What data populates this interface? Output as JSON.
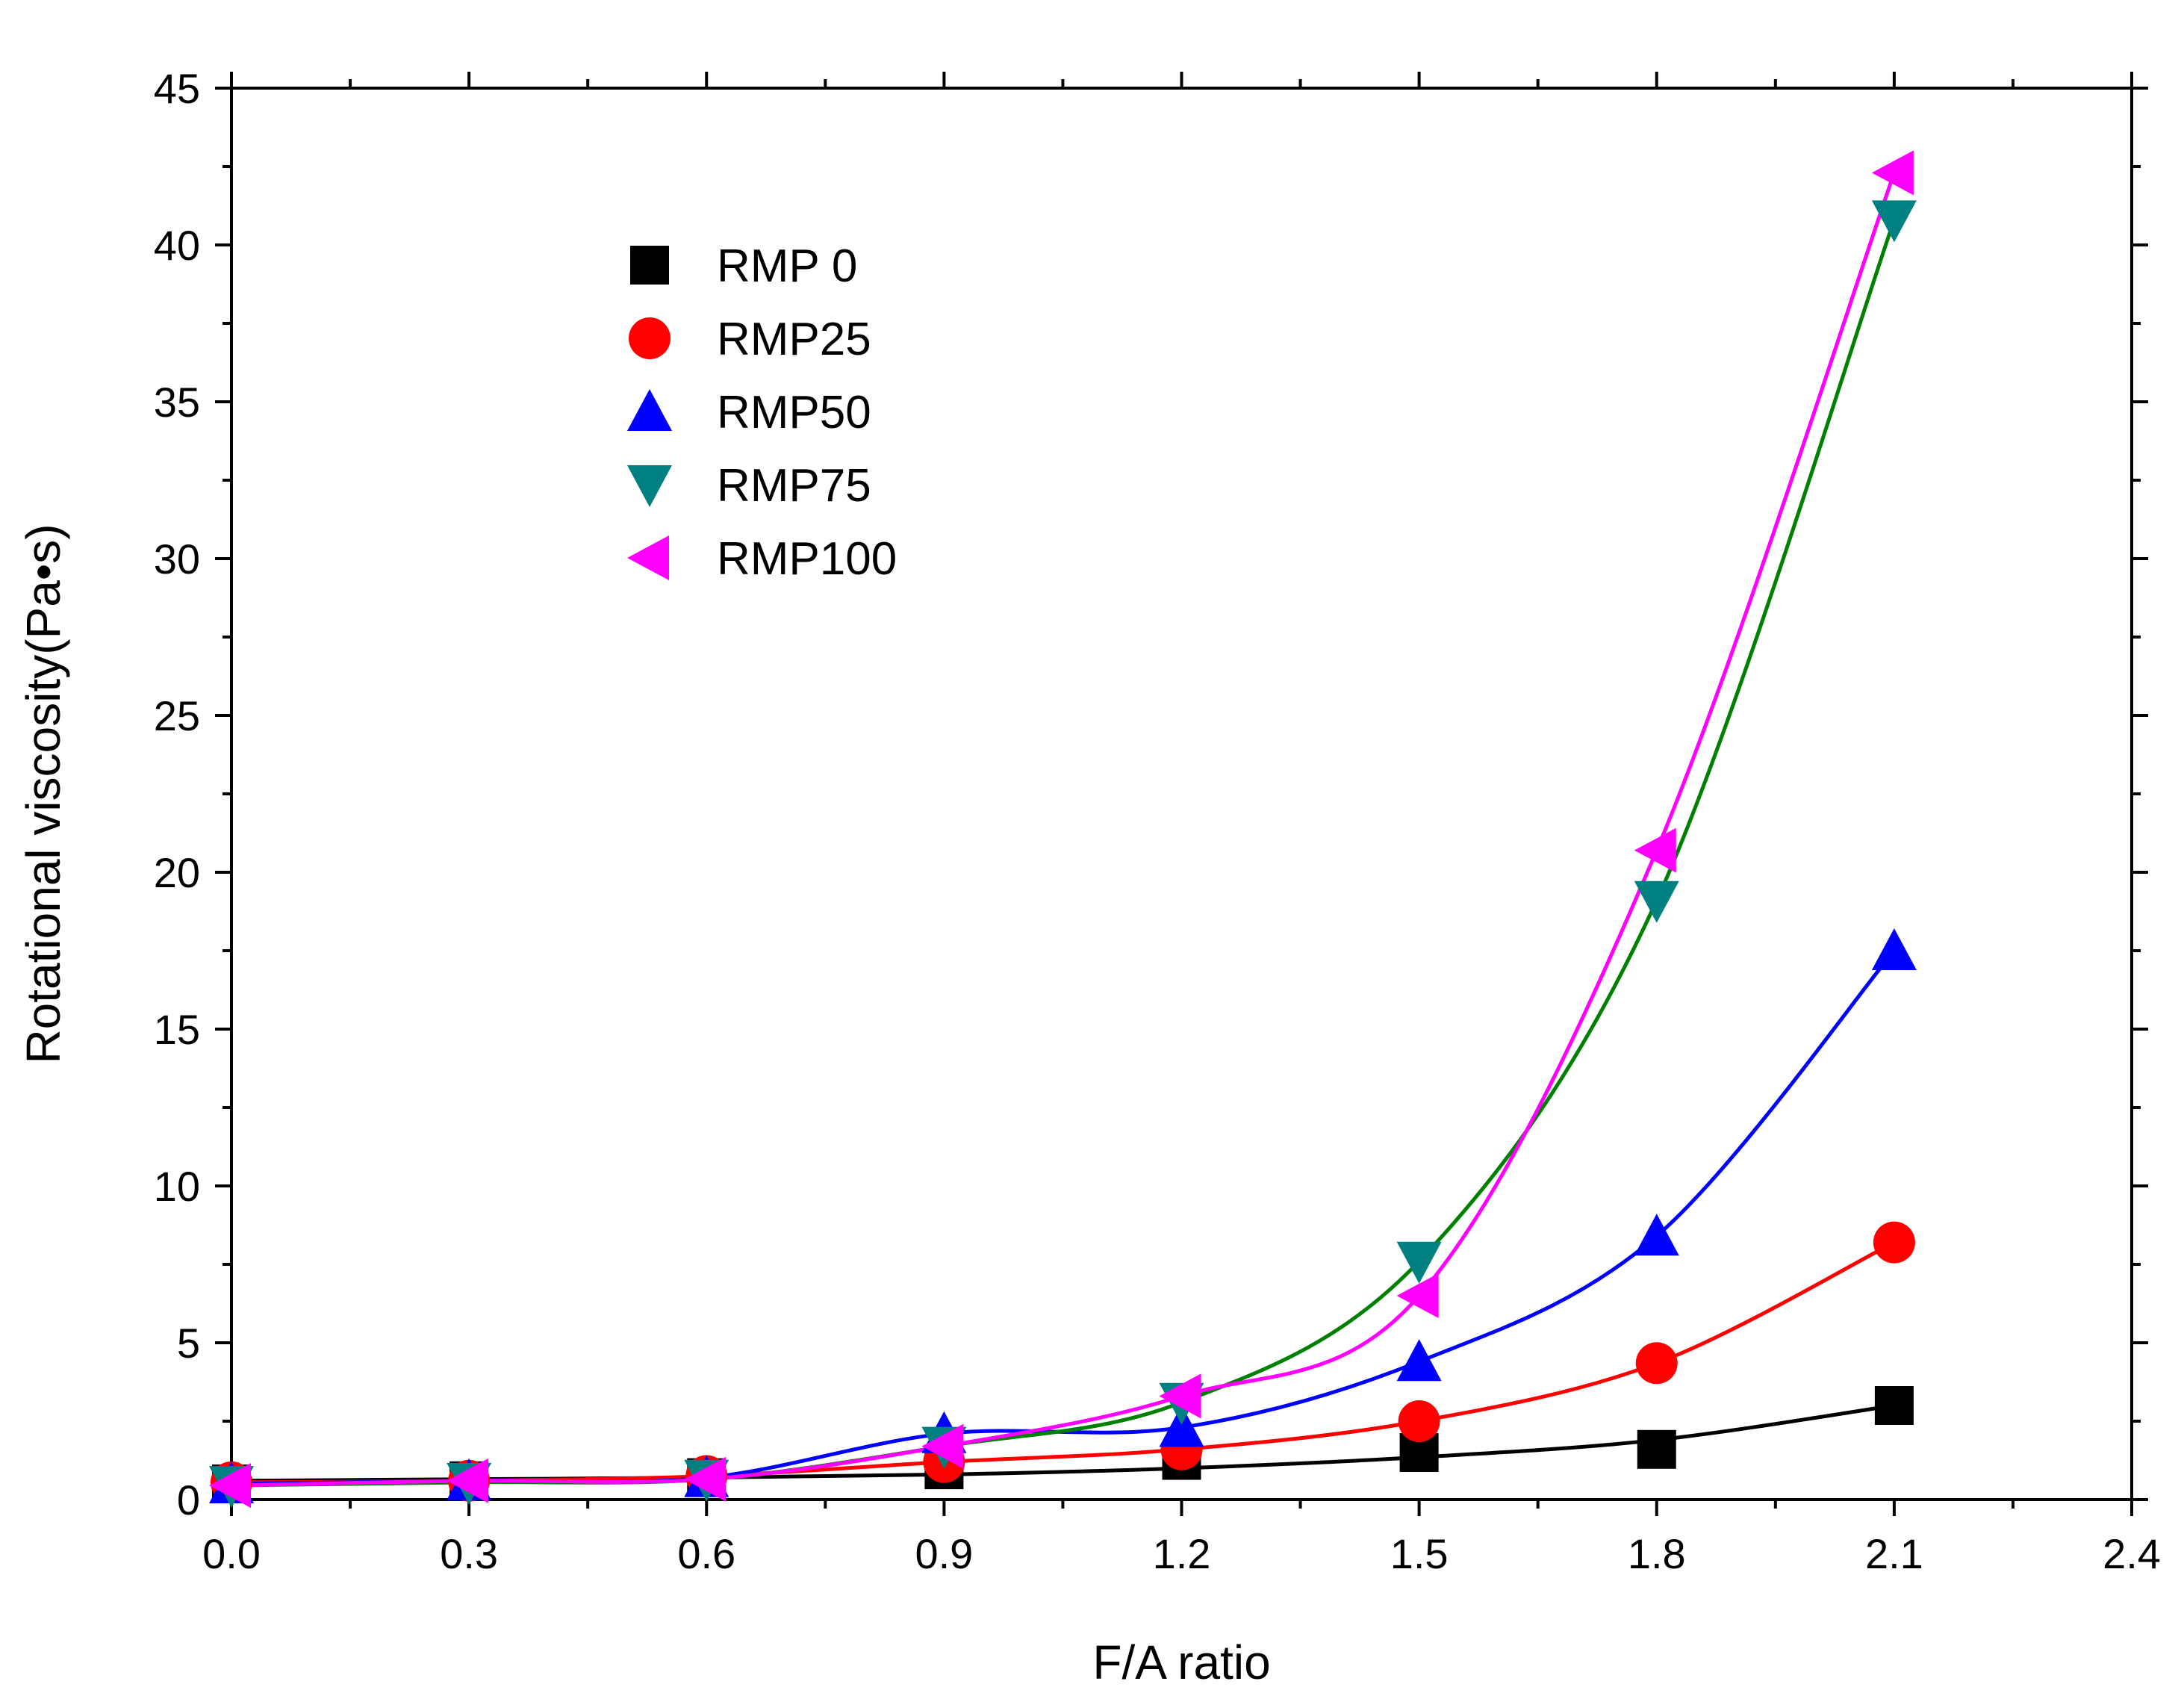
{
  "chart_data": {
    "type": "scatter",
    "title": "",
    "xlabel": "F/A ratio",
    "ylabel": "Rotational viscosity(Pa•s)",
    "xlim": [
      0.0,
      2.4
    ],
    "ylim": [
      0,
      45
    ],
    "x_ticks": [
      "0.0",
      "0.3",
      "0.6",
      "0.9",
      "1.2",
      "1.5",
      "1.8",
      "2.1",
      "2.4"
    ],
    "y_ticks": [
      "0",
      "5",
      "10",
      "15",
      "20",
      "25",
      "30",
      "35",
      "40",
      "45"
    ],
    "grid": false,
    "legend_position": "top-left",
    "x": [
      0.0,
      0.3,
      0.6,
      0.9,
      1.2,
      1.5,
      1.8,
      2.1
    ],
    "series": [
      {
        "name": "RMP 0",
        "marker": "square",
        "color": "#000000",
        "line_color": "#000000",
        "values": [
          0.5,
          0.6,
          0.7,
          0.95,
          1.25,
          1.5,
          1.6,
          3.0
        ],
        "fit": [
          0.6,
          0.65,
          0.7,
          0.8,
          1.0,
          1.35,
          1.9,
          3.0
        ]
      },
      {
        "name": "RMP25",
        "marker": "circle",
        "color": "#ff0000",
        "line_color": "#ff0000",
        "values": [
          0.55,
          0.6,
          0.75,
          1.2,
          1.6,
          2.5,
          4.35,
          8.2
        ]
      },
      {
        "name": "RMP50",
        "marker": "triangle-up",
        "color": "#0000ff",
        "line_color": "#0000ff",
        "values": [
          0.5,
          0.6,
          0.7,
          2.1,
          2.3,
          4.4,
          8.4,
          17.5
        ]
      },
      {
        "name": "RMP75",
        "marker": "triangle-down",
        "color": "#008080",
        "line_color": "#008000",
        "values": [
          0.45,
          0.55,
          0.65,
          1.7,
          3.1,
          7.6,
          19.1,
          40.8
        ]
      },
      {
        "name": "RMP100",
        "marker": "triangle-left",
        "color": "#ff00ff",
        "line_color": "#ff00ff",
        "values": [
          0.45,
          0.6,
          0.65,
          1.7,
          3.3,
          6.5,
          20.7,
          42.3
        ]
      }
    ]
  }
}
